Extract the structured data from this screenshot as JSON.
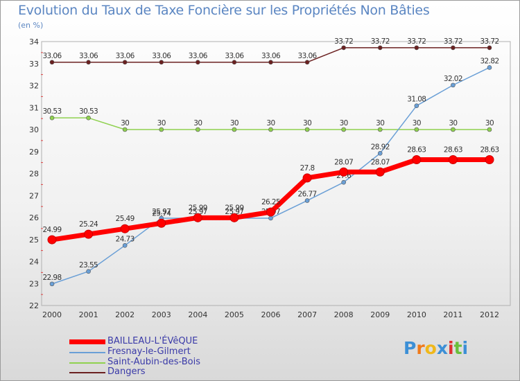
{
  "chart_data": {
    "type": "line",
    "title": "Evolution du Taux de Taxe Foncière sur les Propriétés Non Bâties",
    "ylabel": "(en %)",
    "xlabel": "",
    "categories": [
      "2000",
      "2001",
      "2002",
      "2003",
      "2004",
      "2005",
      "2006",
      "2007",
      "2008",
      "2009",
      "2010",
      "2011",
      "2012"
    ],
    "yticks": [
      22,
      23,
      24,
      25,
      26,
      27,
      28,
      29,
      30,
      31,
      32,
      33,
      34
    ],
    "ylim": [
      22,
      34
    ],
    "series": [
      {
        "name": "Dangers",
        "color": "#6b2020",
        "width": 1.5,
        "marker": 3,
        "values": [
          33.06,
          33.06,
          33.06,
          33.06,
          33.06,
          33.06,
          33.06,
          33.06,
          33.72,
          33.72,
          33.72,
          33.72,
          33.72
        ],
        "labels": [
          "33.06",
          "33.06",
          "33.06",
          "33.06",
          "33.06",
          "33.06",
          "33.06",
          "33.06",
          "33.72",
          "33.72",
          "33.72",
          "33.72",
          "33.72"
        ]
      },
      {
        "name": "Saint-Aubin-des-Bois",
        "color": "#8fd14f",
        "width": 1.5,
        "marker": 3,
        "values": [
          30.53,
          30.53,
          30,
          30,
          30,
          30,
          30,
          30,
          30,
          30,
          30,
          30,
          30
        ],
        "labels": [
          "30.53",
          "30.53",
          "30",
          "30",
          "30",
          "30",
          "30",
          "30",
          "30",
          "30",
          "30",
          "30",
          "30"
        ]
      },
      {
        "name": "Fresnay-le-Gilmert",
        "color": "#6a9fd6",
        "width": 1.5,
        "marker": 3,
        "values": [
          22.98,
          23.55,
          24.73,
          25.97,
          25.97,
          25.97,
          25.97,
          26.77,
          27.6,
          28.92,
          31.08,
          32.02,
          32.82
        ],
        "labels": [
          "22.98",
          "23.55",
          "24.73",
          "25.97",
          "25.97",
          "25.97",
          "25.97",
          "26.77",
          "27.6",
          "28.92",
          "31.08",
          "32.02",
          "32.82"
        ]
      },
      {
        "name": "BAILLEAU-L'ÉVêQUE",
        "color": "#ff0000",
        "width": 7,
        "marker": 6,
        "values": [
          24.99,
          25.24,
          25.49,
          25.74,
          25.99,
          25.99,
          26.25,
          27.8,
          28.07,
          28.07,
          28.63,
          28.63,
          28.63
        ],
        "labels": [
          "24.99",
          "25.24",
          "25.49",
          "25.74",
          "25.99",
          "25.99",
          "26.25",
          "27.8",
          "28.07",
          "28.07",
          "28.63",
          "28.63",
          "28.63"
        ]
      }
    ],
    "legend": [
      "BAILLEAU-L'ÉVêQUE",
      "Fresnay-le-Gilmert",
      "Saint-Aubin-des-Bois",
      "Dangers"
    ],
    "legend_position": "bottom-left",
    "grid": false
  },
  "logo": {
    "text": "Proxiti",
    "letters": [
      "P",
      "r",
      "o",
      "x",
      "i",
      "t",
      "i"
    ],
    "colors": [
      "#3c8fd6",
      "#f07a1a",
      "#f0b81a",
      "#3c8fd6",
      "#e03030",
      "#6abf3c",
      "#3c8fd6"
    ]
  }
}
